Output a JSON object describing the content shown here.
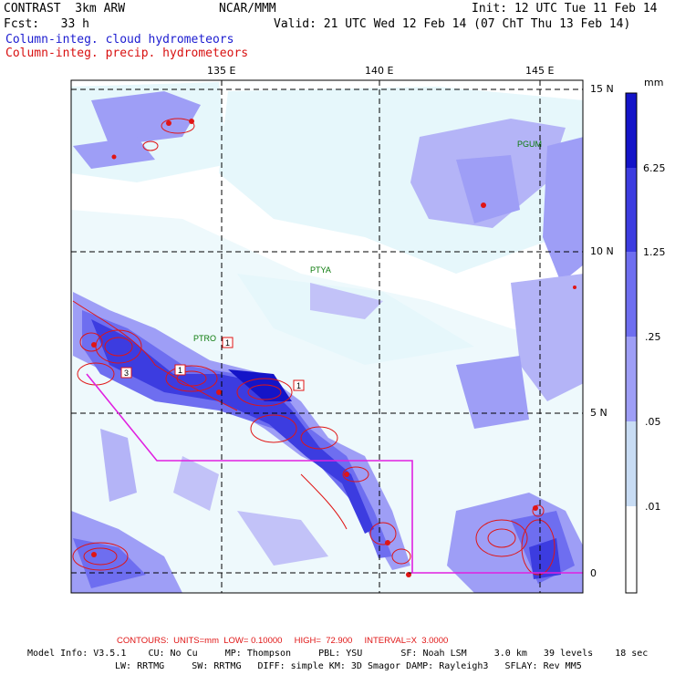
{
  "header": {
    "title": "CONTRAST  3km ARW",
    "org": "NCAR/MMM",
    "init": "Init: 12 UTC Tue 11 Feb 14",
    "fcst": "Fcst:   33 h",
    "valid": "Valid: 21 UTC Wed 12 Feb 14 (07 ChT Thu 13 Feb 14)",
    "field1": "Column-integ. cloud hydrometeors",
    "field2": "Column-integ. precip. hydrometeors"
  },
  "axes": {
    "lon_labels": [
      "135 E",
      "140 E",
      "145 E"
    ],
    "lat_labels": [
      "15 N",
      "10 N",
      "5 N",
      "0"
    ]
  },
  "colorbar": {
    "unit": "mm",
    "labels": [
      "6.25",
      "1.25",
      ".25",
      ".05",
      ".01"
    ],
    "colors": [
      "#1414c8",
      "#3c3ce0",
      "#6e6ef0",
      "#9e9ef6",
      "#c8dcf4",
      "#e6f7fb",
      "#ffffff"
    ]
  },
  "stations": [
    "PGUM",
    "PTYA",
    "PTRO"
  ],
  "contour_boxes": [
    "1",
    "1",
    "3",
    "1"
  ],
  "footer": {
    "contours": "CONTOURS:  UNITS=mm  LOW= 0.10000     HIGH=  72.900     INTERVAL=X  3.0000",
    "model1": "Model Info: V3.5.1    CU: No Cu     MP: Thompson     PBL: YSU       SF: Noah LSM     3.0 km   39 levels    18 sec",
    "model2": "LW: RRTMG     SW: RRTMG   DIFF: simple KM: 3D Smagor DAMP: Rayleigh3   SFLAY: Rev MM5"
  },
  "colors": {
    "cloud_label": "#1c1cd0",
    "precip_label": "#d81010",
    "domain_box": "#e020e0",
    "contour": "#e01515"
  }
}
